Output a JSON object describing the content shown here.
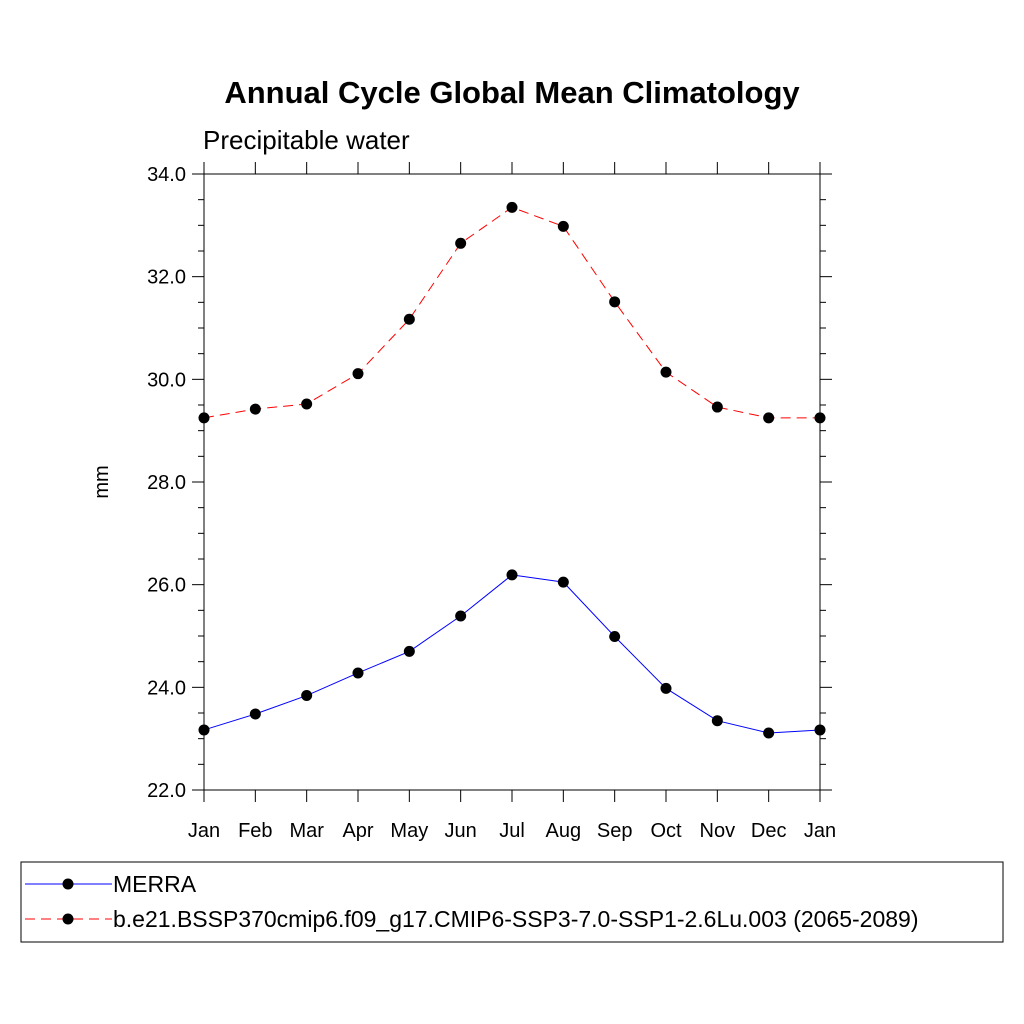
{
  "chart_data": {
    "type": "line",
    "title": "Annual Cycle Global Mean Climatology",
    "subtitle": "Precipitable water",
    "xlabel": "",
    "ylabel": "mm",
    "categories": [
      "Jan",
      "Feb",
      "Mar",
      "Apr",
      "May",
      "Jun",
      "Jul",
      "Aug",
      "Sep",
      "Oct",
      "Nov",
      "Dec",
      "Jan"
    ],
    "ylim": [
      22.0,
      34.0
    ],
    "yticks": [
      "22.0",
      "24.0",
      "26.0",
      "28.0",
      "30.0",
      "32.0",
      "34.0"
    ],
    "grid": false,
    "legend_position": "bottom",
    "series": [
      {
        "name": "MERRA",
        "color": "#0000ff",
        "dash": "solid",
        "values": [
          23.17,
          23.48,
          23.84,
          24.28,
          24.7,
          25.39,
          26.19,
          26.05,
          24.99,
          23.98,
          23.35,
          23.11,
          23.17
        ]
      },
      {
        "name": "b.e21.BSSP370cmip6.f09_g17.CMIP6-SSP3-7.0-SSP1-2.6Lu.003 (2065-2089)",
        "color": "#ff0000",
        "dash": "dashed",
        "values": [
          29.25,
          29.42,
          29.52,
          30.11,
          31.17,
          32.65,
          33.35,
          32.98,
          31.51,
          30.14,
          29.46,
          29.25,
          29.25
        ]
      }
    ]
  }
}
